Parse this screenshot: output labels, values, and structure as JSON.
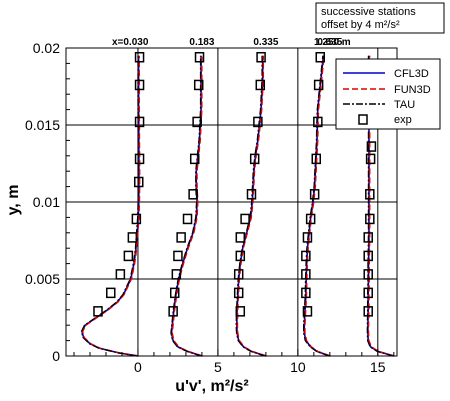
{
  "chart_data": {
    "type": "line",
    "xlabel": "u'v', m²/s²",
    "ylabel": "y, m",
    "xlim": [
      -4.5,
      16.2
    ],
    "ylim": [
      0,
      0.02
    ],
    "xticks": [
      0,
      5,
      10,
      15
    ],
    "yticks": [
      0,
      0.005,
      0.01,
      0.015,
      0.02
    ],
    "ytick_labels": [
      "0",
      "0.005",
      "0.01",
      "0.015",
      "0.02"
    ],
    "grid": true,
    "legend_position": "top-right",
    "note_lines": [
      "successive stations",
      "offset by 4 m²/s²"
    ],
    "offset": 4,
    "stations": [
      {
        "label": "x=0.030",
        "offset": 0,
        "profile": {
          "y": [
            0,
            0.0002,
            0.0005,
            0.0008,
            0.0012,
            0.0016,
            0.002,
            0.0025,
            0.003,
            0.0035,
            0.004,
            0.005,
            0.006,
            0.007,
            0.008,
            0.009,
            0.01,
            0.011,
            0.012,
            0.013,
            0.014,
            0.015,
            0.016,
            0.017,
            0.018,
            0.019,
            0.0195
          ],
          "uv": [
            0,
            -1.2,
            -2.4,
            -3.0,
            -3.4,
            -3.5,
            -3.3,
            -2.6,
            -1.9,
            -1.3,
            -0.9,
            -0.45,
            -0.25,
            -0.12,
            -0.05,
            0.02,
            0.05,
            0.06,
            0.06,
            0.06,
            0.05,
            0.05,
            0.04,
            0.04,
            0.04,
            0.04,
            0.04
          ]
        },
        "exp": {
          "y": [
            0.0029,
            0.0041,
            0.0053,
            0.0065,
            0.0077,
            0.0089,
            0.0113,
            0.0128,
            0.0152,
            0.0176,
            0.0194
          ],
          "uv": [
            -2.5,
            -1.7,
            -1.1,
            -0.6,
            -0.35,
            -0.1,
            0.05,
            0.1,
            0.1,
            0.1,
            0.1
          ]
        }
      },
      {
        "label": "0.183",
        "offset": 4,
        "profile": {
          "y": [
            0,
            0.0003,
            0.0006,
            0.001,
            0.0015,
            0.002,
            0.003,
            0.004,
            0.005,
            0.006,
            0.007,
            0.008,
            0.009,
            0.01,
            0.011,
            0.012,
            0.013,
            0.014,
            0.015,
            0.016,
            0.017,
            0.018,
            0.019,
            0.0195
          ],
          "uv": [
            0,
            -0.9,
            -1.5,
            -1.8,
            -1.9,
            -1.85,
            -1.75,
            -1.62,
            -1.45,
            -1.2,
            -0.9,
            -0.55,
            -0.35,
            -0.3,
            -0.35,
            -0.35,
            -0.25,
            -0.15,
            -0.1,
            -0.05,
            -0.05,
            -0.05,
            -0.05,
            -0.05
          ]
        },
        "exp": {
          "y": [
            0.0029,
            0.0041,
            0.0053,
            0.0065,
            0.0077,
            0.0089,
            0.0105,
            0.0128,
            0.0152,
            0.0176,
            0.0194
          ],
          "uv": [
            -1.8,
            -1.7,
            -1.6,
            -1.5,
            -1.3,
            -0.9,
            -0.55,
            -0.45,
            -0.3,
            -0.2,
            -0.15
          ]
        }
      },
      {
        "label": "0.335",
        "offset": 8,
        "profile": {
          "y": [
            0,
            0.0003,
            0.0006,
            0.001,
            0.0015,
            0.002,
            0.003,
            0.004,
            0.005,
            0.006,
            0.007,
            0.008,
            0.009,
            0.01,
            0.011,
            0.012,
            0.013,
            0.014,
            0.015,
            0.016,
            0.017,
            0.018,
            0.019,
            0.0195
          ],
          "uv": [
            0,
            -0.9,
            -1.4,
            -1.7,
            -1.8,
            -1.82,
            -1.8,
            -1.75,
            -1.7,
            -1.6,
            -1.45,
            -1.2,
            -0.95,
            -0.85,
            -0.8,
            -0.75,
            -0.65,
            -0.5,
            -0.4,
            -0.3,
            -0.25,
            -0.2,
            -0.2,
            -0.2
          ]
        },
        "exp": {
          "y": [
            0.0029,
            0.0041,
            0.0053,
            0.0065,
            0.0077,
            0.0089,
            0.0105,
            0.0128,
            0.0152,
            0.0176,
            0.0194
          ],
          "uv": [
            -1.6,
            -1.7,
            -1.7,
            -1.6,
            -1.6,
            -1.3,
            -0.9,
            -0.7,
            -0.5,
            -0.35,
            -0.3
          ]
        }
      },
      {
        "label": "0.635",
        "offset": 12,
        "profile": {
          "y": [
            0,
            0.0003,
            0.0006,
            0.001,
            0.0015,
            0.002,
            0.003,
            0.004,
            0.005,
            0.006,
            0.007,
            0.008,
            0.009,
            0.01,
            0.011,
            0.012,
            0.013,
            0.014,
            0.015,
            0.016,
            0.017,
            0.018,
            0.019,
            0.0195
          ],
          "uv": [
            0,
            -0.8,
            -1.2,
            -1.5,
            -1.6,
            -1.6,
            -1.55,
            -1.5,
            -1.48,
            -1.45,
            -1.4,
            -1.3,
            -1.2,
            -1.05,
            -0.95,
            -0.9,
            -0.85,
            -0.8,
            -0.78,
            -0.75,
            -0.65,
            -0.55,
            -0.45,
            -0.4
          ]
        },
        "exp": {
          "y": [
            0.0029,
            0.0041,
            0.0053,
            0.0065,
            0.0077,
            0.0089,
            0.0105,
            0.0128,
            0.0152,
            0.0176,
            0.0194
          ],
          "uv": [
            -1.4,
            -1.5,
            -1.5,
            -1.5,
            -1.4,
            -1.2,
            -0.95,
            -0.85,
            -0.75,
            -0.7,
            -0.6
          ]
        }
      },
      {
        "label": "1.250 m",
        "offset": 16,
        "profile": {
          "y": [
            0,
            0.0003,
            0.0006,
            0.001,
            0.0015,
            0.002,
            0.003,
            0.004,
            0.005,
            0.006,
            0.007,
            0.008,
            0.009,
            0.01,
            0.011,
            0.012,
            0.013,
            0.014,
            0.015,
            0.016,
            0.017,
            0.018,
            0.019,
            0.0195
          ],
          "uv": [
            0,
            -1.0,
            -1.45,
            -1.6,
            -1.62,
            -1.62,
            -1.6,
            -1.6,
            -1.58,
            -1.58,
            -1.56,
            -1.55,
            -1.55,
            -1.55,
            -1.55,
            -1.55,
            -1.55,
            -1.55,
            -1.55,
            -1.55,
            -1.55,
            -1.55,
            -1.55,
            -1.55
          ]
        },
        "exp": {
          "y": [
            0.0029,
            0.0041,
            0.0053,
            0.0065,
            0.0077,
            0.0089,
            0.0105,
            0.0128,
            0.0136
          ],
          "uv": [
            -1.6,
            -1.6,
            -1.6,
            -1.6,
            -1.6,
            -1.5,
            -1.5,
            -1.45,
            -1.4
          ]
        }
      }
    ],
    "series": [
      {
        "name": "CFL3D",
        "color": "#0000cc",
        "dash": "solid"
      },
      {
        "name": "FUN3D",
        "color": "#dd0000",
        "dash": "dashed"
      },
      {
        "name": "TAU",
        "color": "#000000",
        "dash": "dashdot"
      },
      {
        "name": "exp",
        "color": "#000000",
        "marker": "open-square"
      }
    ]
  }
}
